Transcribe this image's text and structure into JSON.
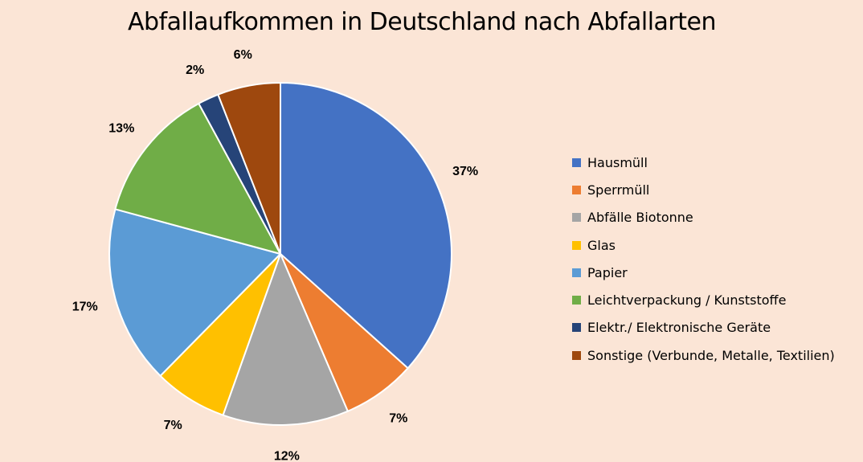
{
  "chart_data": {
    "type": "pie",
    "title": "Abfallaufkommen in Deutschland nach Abfallarten",
    "categories": [
      "Hausmüll",
      "Sperrmüll",
      "Abfälle Biotonne",
      "Glas",
      "Papier",
      "Leichtverpackung / Kunststoffe",
      "Elektr./ Elektronische Geräte",
      "Sonstige (Verbunde, Metalle, Textilien)"
    ],
    "values": [
      37,
      7,
      12,
      7,
      17,
      13,
      2,
      6
    ],
    "labels": [
      "37%",
      "7%",
      "12%",
      "7%",
      "17%",
      "13%",
      "2%",
      "6%"
    ],
    "colors": [
      "#4472C4",
      "#ED7D31",
      "#A5A5A5",
      "#FFC000",
      "#5B9BD5",
      "#70AD47",
      "#264478",
      "#9E480E"
    ],
    "legend_position": "right",
    "background": "#FBE5D6"
  }
}
